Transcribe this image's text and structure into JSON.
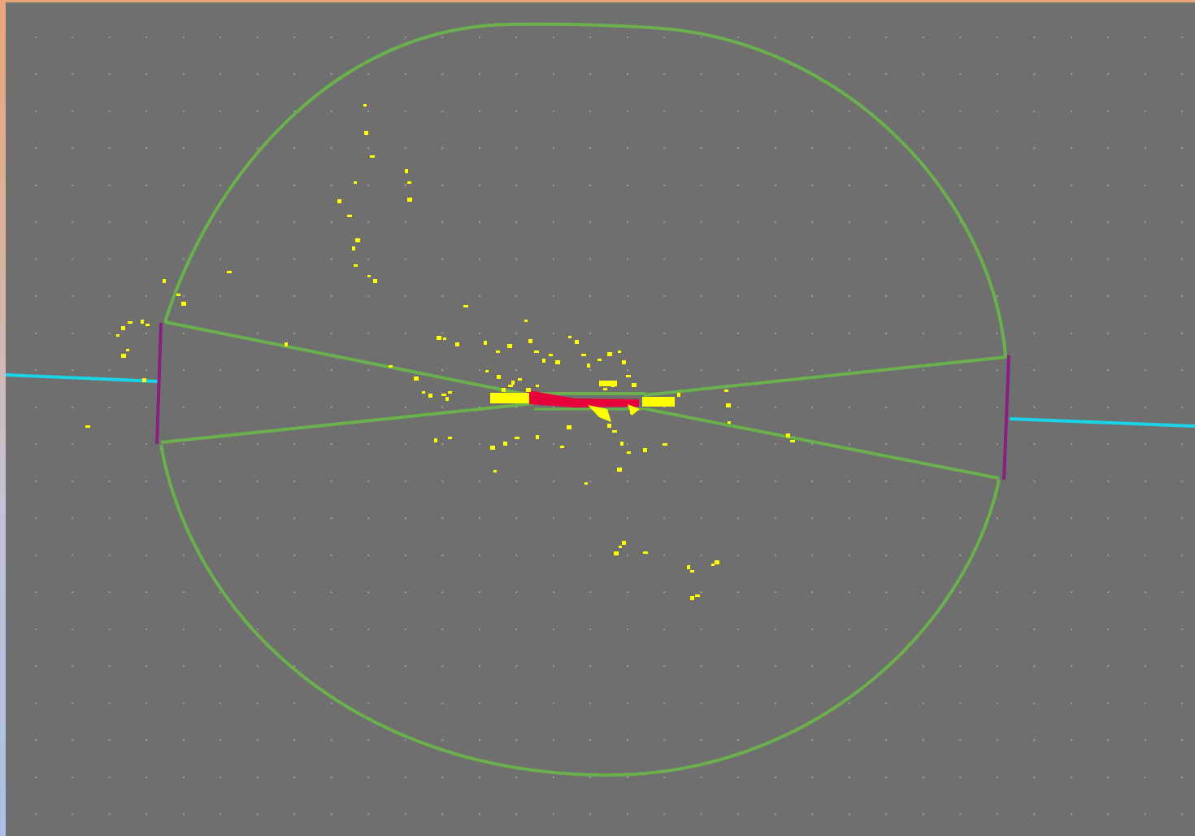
{
  "window": {
    "frame_gradient": [
      "#e9a57a",
      "#aabfe6"
    ],
    "viewport_background": "#6f6f6f",
    "grid": "dotted"
  },
  "scene": {
    "detector_outline": {
      "color": "#6ab04c",
      "shape": "ellipse-with-crossing-wedges"
    },
    "end_caps": {
      "color": "#8b1f7f",
      "count": 2
    },
    "beam_lines": {
      "color": "#19d3e6",
      "count": 2
    },
    "hits": {
      "color": "#ffff00"
    },
    "core_track": {
      "color": "#e8003a"
    }
  }
}
